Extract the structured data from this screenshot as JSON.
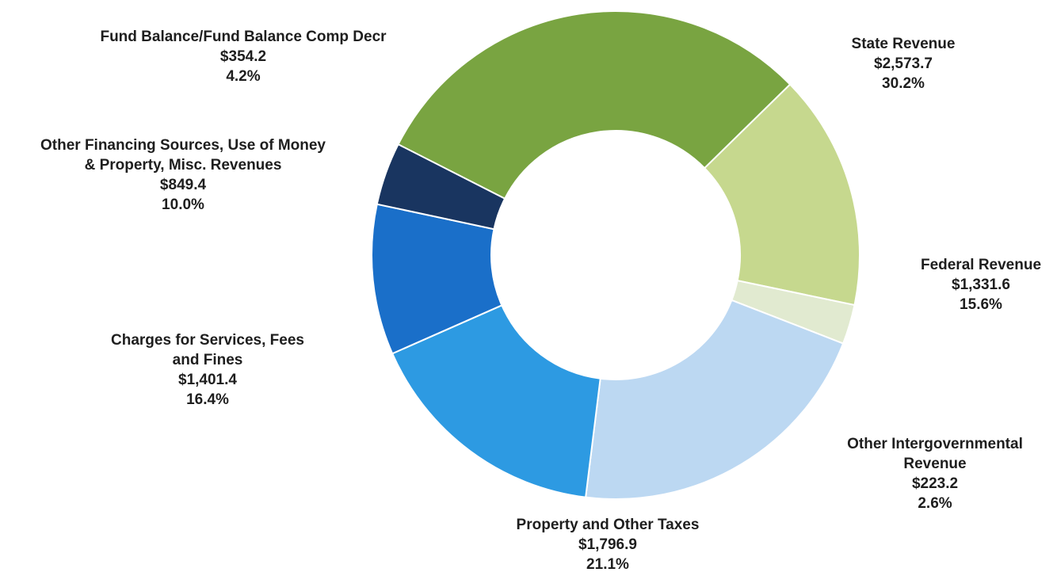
{
  "chart_data": {
    "type": "pie",
    "variant": "donut",
    "title": "",
    "slices": [
      {
        "label_lines": [
          "State Revenue"
        ],
        "value_label": "$2,573.7",
        "percent_label": "30.2%",
        "value": 2573.7,
        "percent": 30.2,
        "color": "#79a441"
      },
      {
        "label_lines": [
          "Federal Revenue"
        ],
        "value_label": "$1,331.6",
        "percent_label": "15.6%",
        "value": 1331.6,
        "percent": 15.6,
        "color": "#c6d88e"
      },
      {
        "label_lines": [
          "Other Intergovernmental",
          "Revenue"
        ],
        "value_label": "$223.2",
        "percent_label": "2.6%",
        "value": 223.2,
        "percent": 2.6,
        "color": "#e1ead0"
      },
      {
        "label_lines": [
          "Property and Other Taxes"
        ],
        "value_label": "$1,796.9",
        "percent_label": "21.1%",
        "value": 1796.9,
        "percent": 21.1,
        "color": "#bcd8f2"
      },
      {
        "label_lines": [
          "Charges for Services, Fees",
          "and Fines"
        ],
        "value_label": "$1,401.4",
        "percent_label": "16.4%",
        "value": 1401.4,
        "percent": 16.4,
        "color": "#2d9ae2"
      },
      {
        "label_lines": [
          "Other Financing Sources, Use of Money",
          "& Property,  Misc. Revenues"
        ],
        "value_label": "$849.4",
        "percent_label": "10.0%",
        "value": 849.4,
        "percent": 10.0,
        "color": "#1a6fc9"
      },
      {
        "label_lines": [
          "Fund Balance/Fund Balance Comp Decr"
        ],
        "value_label": "$354.2",
        "percent_label": "4.2%",
        "value": 354.2,
        "percent": 4.2,
        "color": "#193560"
      }
    ],
    "legend": "none"
  }
}
